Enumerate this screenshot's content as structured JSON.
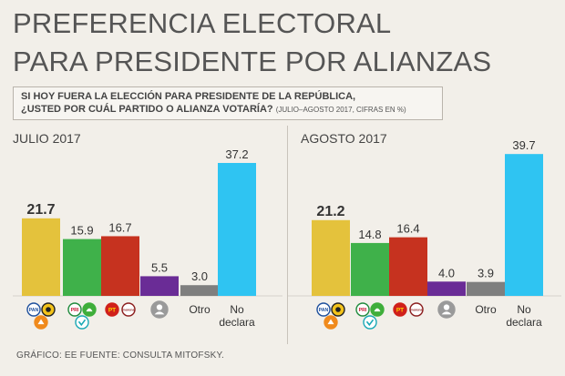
{
  "header": {
    "title_line1": "PREFERENCIA ELECTORAL",
    "title_line2": "PARA PRESIDENTE POR ALIANZAS"
  },
  "question": {
    "line1": "SI HOY FUERA LA ELECCIÓN PARA PRESIDENTE DE LA REPÚBLICA,",
    "line2": "¿USTED POR CUÁL PARTIDO O ALIANZA VOTARÍA?",
    "note": "(JULIO–AGOSTO 2017, CIFRAS EN %)"
  },
  "footer": "GRÁFICO: EE  FUENTE: CONSULTA MITOFSKY.",
  "colors": {
    "pan_alliance": "#e4c23c",
    "pri_alliance": "#3fb14a",
    "pt_morena": "#c6321f",
    "independent": "#6a2c96",
    "otro": "#7f7f7f",
    "no_declara": "#2fc4f2"
  },
  "party_icons": [
    [
      "pan-logo-icon",
      "prd-logo-icon",
      "mc-logo-icon"
    ],
    [
      "pri-logo-icon",
      "pvem-logo-icon",
      "panal-logo-icon"
    ],
    [
      "pt-logo-icon",
      "morena-logo-icon"
    ],
    [
      "independent-candidate-icon"
    ]
  ],
  "chart_data": [
    {
      "type": "bar",
      "title": "JULIO 2017",
      "categories": [
        "PAN-PRD-MC",
        "PRI-PVEM-PANAL",
        "PT-MORENA",
        "Independiente",
        "Otro",
        "No declara"
      ],
      "category_labels": [
        "",
        "",
        "",
        "",
        "Otro",
        "No declara"
      ],
      "values": [
        21.7,
        15.9,
        16.7,
        5.5,
        3.0,
        37.2
      ],
      "value_labels": [
        "21.7",
        "15.9",
        "16.7",
        "5.5",
        "3.0",
        "37.2"
      ],
      "highlight_index": 0,
      "ylim": [
        0,
        40
      ]
    },
    {
      "type": "bar",
      "title": "AGOSTO 2017",
      "categories": [
        "PAN-PRD-MC",
        "PRI-PVEM-PANAL",
        "PT-MORENA",
        "Independiente",
        "Otro",
        "No declara"
      ],
      "category_labels": [
        "",
        "",
        "",
        "",
        "Otro",
        "No declara"
      ],
      "values": [
        21.2,
        14.8,
        16.4,
        4.0,
        3.9,
        39.7
      ],
      "value_labels": [
        "21.2",
        "14.8",
        "16.4",
        "4.0",
        "3.9",
        "39.7"
      ],
      "highlight_index": 0,
      "ylim": [
        0,
        40
      ]
    }
  ]
}
